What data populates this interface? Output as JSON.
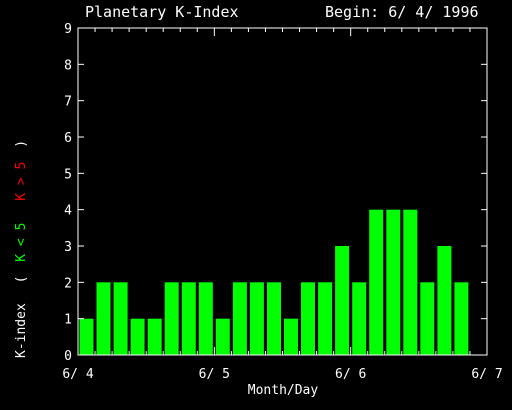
{
  "header": {
    "title": "Planetary K-Index",
    "begin": "Begin: 6/ 4/ 1996"
  },
  "colors": {
    "background": "#000000",
    "axes": "#ffffff",
    "bar": "#00ff00",
    "label_low": "#00ff00",
    "label_high": "#ff0000"
  },
  "axis_labels": {
    "x": "Month/Day",
    "y_main": "K-index",
    "y_paren_open": "(",
    "y_low": "K < 5",
    "y_high": "K > 5",
    "y_paren_close": ")"
  },
  "chart_data": {
    "type": "bar",
    "title": "Planetary K-Index",
    "subtitle": "Begin: 6/ 4/ 1996",
    "xlabel": "Month/Day",
    "ylabel": "K-index",
    "ylim": [
      0,
      9
    ],
    "yticks": [
      "0",
      "1",
      "2",
      "3",
      "4",
      "5",
      "6",
      "7",
      "8",
      "9"
    ],
    "xticks": [
      "6/ 4",
      "6/ 5",
      "6/ 6",
      "6/ 7"
    ],
    "values": [
      1,
      2,
      2,
      1,
      1,
      2,
      2,
      2,
      1,
      2,
      2,
      2,
      1,
      2,
      2,
      3,
      2,
      4,
      4,
      4,
      2,
      3,
      2
    ],
    "bins_per_day": 8,
    "days": 3,
    "grid": false
  }
}
